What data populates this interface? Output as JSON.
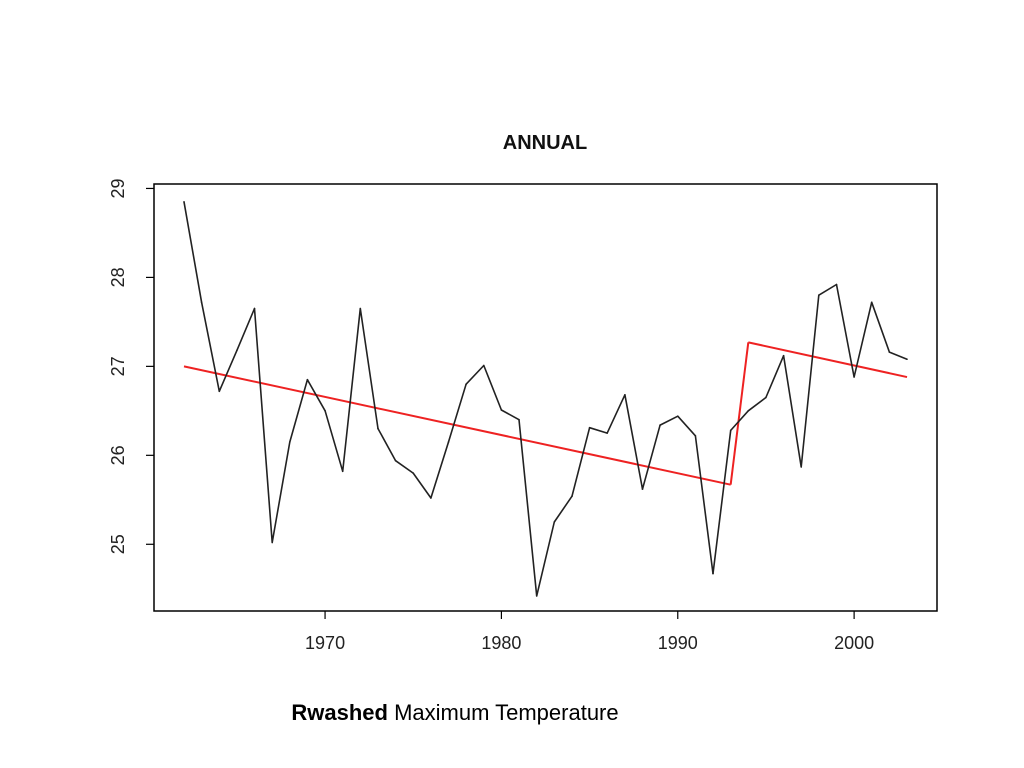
{
  "caption": {
    "bold": "Rwashed",
    "rest": " Maximum Temperature"
  },
  "colors": {
    "series": "#222222",
    "trend": "#ee2222",
    "axis": "#000000"
  },
  "chart_data": {
    "type": "line",
    "title": "ANNUAL",
    "xlabel": "",
    "ylabel": "",
    "xlim": [
      1960.3,
      2004.7
    ],
    "ylim": [
      24.25,
      29.05
    ],
    "xticks": [
      1970,
      1980,
      1990,
      2000
    ],
    "yticks": [
      25,
      26,
      27,
      28,
      29
    ],
    "grid": false,
    "series": [
      {
        "x": [
          1962,
          1963,
          1964,
          1965,
          1966,
          1967,
          1968,
          1969,
          1970,
          1971,
          1972,
          1973,
          1974,
          1975,
          1976,
          1977,
          1978,
          1979,
          1980,
          1981,
          1982,
          1983,
          1984,
          1985,
          1986,
          1987,
          1988,
          1989,
          1990,
          1991,
          1992,
          1993,
          1994,
          1995,
          1996,
          1997,
          1998,
          1999,
          2000,
          2001,
          2002,
          2003
        ],
        "values": [
          28.85,
          27.72,
          26.72,
          27.18,
          27.65,
          25.02,
          26.15,
          26.85,
          26.5,
          25.82,
          27.65,
          26.3,
          25.94,
          25.8,
          25.52,
          26.15,
          26.8,
          27.01,
          26.51,
          26.4,
          24.42,
          25.25,
          25.54,
          26.31,
          26.25,
          26.68,
          25.62,
          26.34,
          26.44,
          26.22,
          24.67,
          26.28,
          26.5,
          26.65,
          27.12,
          25.87,
          27.8,
          27.92,
          26.88,
          27.72,
          27.16,
          27.08
        ],
        "color": "#222222"
      }
    ],
    "trend_segments": [
      {
        "x": [
          1962,
          1993
        ],
        "values": [
          27.0,
          25.67
        ]
      },
      {
        "x": [
          1993,
          1994
        ],
        "values": [
          25.67,
          27.27
        ]
      },
      {
        "x": [
          1994,
          2003
        ],
        "values": [
          27.27,
          26.88
        ]
      }
    ]
  }
}
